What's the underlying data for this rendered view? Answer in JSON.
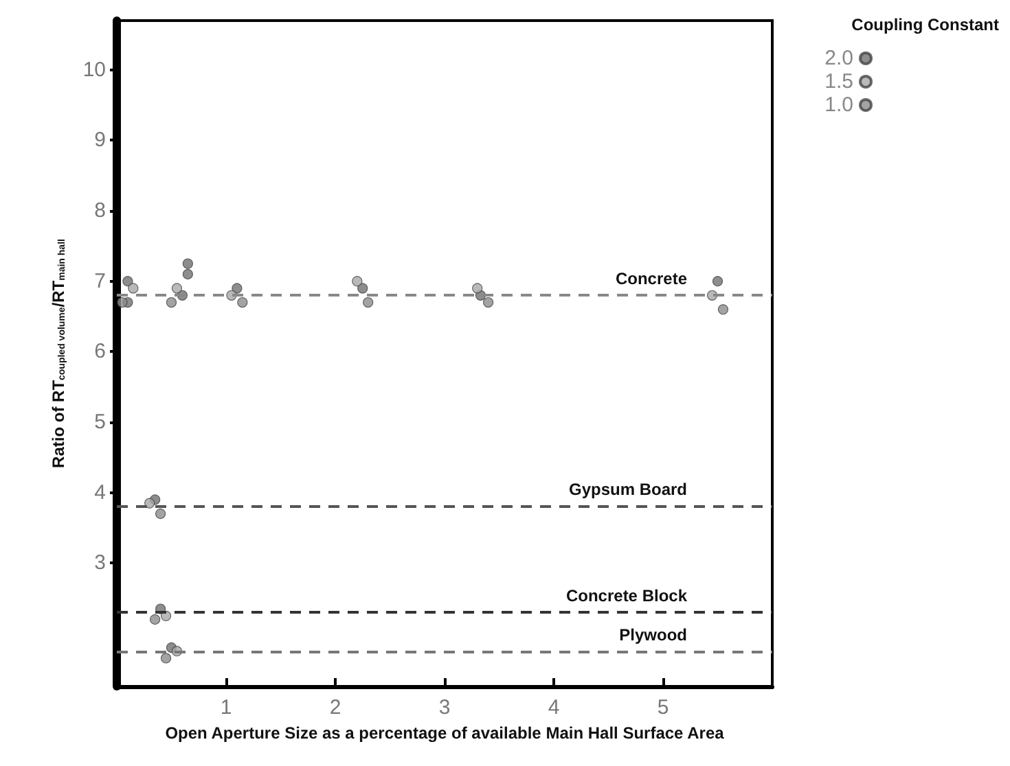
{
  "chart_data": {
    "type": "scatter",
    "xlabel": "Open Aperture Size as a percentage of available Main Hall Surface Area",
    "ylabel": "Ratio of RT$_{coupled volume}$/RT$_{main hall}$",
    "legend_title": "Coupling Constant",
    "legend": "top right",
    "grid": false,
    "marker": "circle",
    "xlim": [
      0,
      6
    ],
    "xticks": [
      1,
      2,
      3,
      4,
      5
    ],
    "ylim": [
      1.25,
      10.7
    ],
    "yticks": [
      3,
      4,
      5,
      6,
      7,
      8,
      9,
      10
    ],
    "series": [
      {
        "name": "2.0",
        "color": "#707070",
        "x": [
          0.1,
          0.1,
          0.6,
          0.65,
          0.65,
          1.1,
          2.25,
          3.33,
          5.5,
          0.35,
          0.4,
          0.5
        ],
        "values": [
          7.0,
          6.7,
          6.8,
          7.1,
          7.25,
          6.9,
          6.9,
          6.8,
          7.0,
          3.9,
          2.35,
          1.8
        ]
      },
      {
        "name": "1.5",
        "color": "#a8a8a8",
        "x": [
          0.15,
          0.55,
          1.05,
          2.2,
          3.3,
          5.45,
          0.3,
          0.45,
          0.55
        ],
        "values": [
          6.9,
          6.9,
          6.8,
          7.0,
          6.9,
          6.8,
          3.85,
          2.25,
          1.75
        ]
      },
      {
        "name": "1.0",
        "color": "#8c8c8c",
        "x": [
          0.05,
          0.5,
          1.15,
          2.3,
          3.4,
          5.55,
          0.4,
          0.35,
          0.45
        ],
        "values": [
          6.7,
          6.7,
          6.7,
          6.7,
          6.7,
          6.6,
          3.7,
          2.2,
          1.65
        ]
      }
    ],
    "ref_lines": [
      {
        "axis": "y",
        "value": 6.8,
        "label": "Concrete",
        "line_style": "dashed",
        "color": "#888888"
      },
      {
        "axis": "y",
        "value": 3.81,
        "label": "Gypsum Board",
        "line_style": "dashed",
        "color": "#555555"
      },
      {
        "axis": "y",
        "value": 2.3,
        "label": "Concrete Block",
        "line_style": "dashed",
        "color": "#333333"
      },
      {
        "axis": "y",
        "value": 1.75,
        "label": "Plywood",
        "line_style": "dashed",
        "color": "#777777"
      }
    ]
  }
}
